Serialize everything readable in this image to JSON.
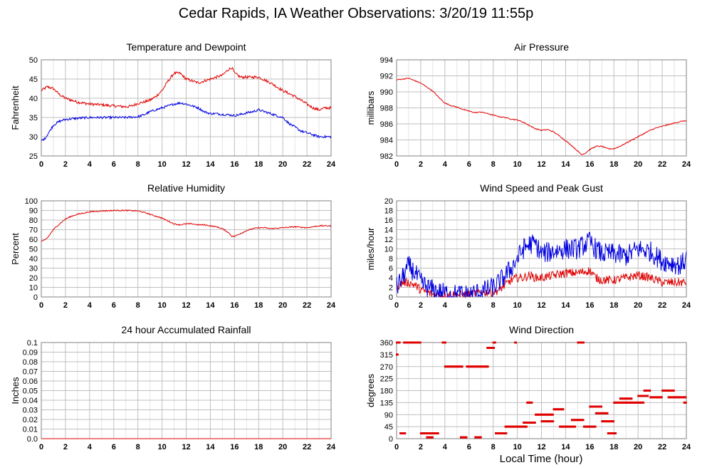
{
  "page": {
    "title": "Cedar Rapids, IA Weather Observations: 3/20/19 11:55p",
    "x_axis_title": "Local Time (hour)"
  },
  "colors": {
    "red": "#e00000",
    "blue": "#0000e0",
    "grid": "#bfbfbf",
    "frame": "#808080"
  },
  "chart_data": [
    {
      "id": "temp",
      "type": "line",
      "title": "Temperature and Dewpoint",
      "ylabel": "Fahrenheit",
      "xlim": [
        0,
        24
      ],
      "ylim": [
        25,
        50
      ],
      "yticks": [
        25,
        30,
        35,
        40,
        45,
        50
      ],
      "xticks": [
        0,
        2,
        4,
        6,
        8,
        10,
        12,
        14,
        16,
        18,
        20,
        22,
        24
      ],
      "grid": true,
      "series": [
        {
          "color": "red",
          "style": "line",
          "noise": 0.35,
          "x": [
            0,
            0.5,
            1,
            1.5,
            2,
            3,
            4,
            5,
            6,
            7,
            7.5,
            8,
            8.5,
            9,
            9.5,
            10,
            10.5,
            11,
            11.5,
            12,
            12.5,
            13,
            13.5,
            14,
            14.5,
            15,
            15.5,
            15.8,
            16,
            16.5,
            17,
            18,
            19,
            20,
            21,
            22,
            22.5,
            23,
            23.5,
            24
          ],
          "y": [
            42,
            43,
            42.5,
            41,
            40,
            39,
            38.5,
            38.3,
            38,
            37.8,
            38,
            38.7,
            39,
            39.5,
            40.5,
            42,
            44.5,
            46.5,
            46.5,
            45,
            44.5,
            44,
            44.5,
            45,
            45.5,
            46,
            47.5,
            48,
            46.5,
            45.5,
            45.5,
            45.5,
            44,
            42,
            40.5,
            38.5,
            37.5,
            37,
            37.5,
            37.5
          ]
        },
        {
          "color": "blue",
          "style": "line",
          "noise": 0.3,
          "x": [
            0,
            0.3,
            0.6,
            1,
            1.5,
            2,
            3,
            4,
            5,
            6,
            7,
            8,
            8.5,
            9,
            9.5,
            10,
            10.5,
            11,
            11.5,
            12,
            12.5,
            13,
            13.5,
            14,
            14.5,
            15,
            15.5,
            16,
            16.5,
            17,
            17.5,
            18,
            18.5,
            19,
            19.5,
            20,
            20.5,
            21,
            21.5,
            22,
            22.5,
            23,
            23.5,
            24
          ],
          "y": [
            29,
            29.5,
            31,
            33,
            34,
            34.5,
            34.8,
            35,
            35,
            35,
            35,
            35.2,
            35.7,
            36.5,
            37,
            37.5,
            38,
            38.5,
            38.8,
            38.5,
            38,
            37.5,
            36.5,
            36,
            36,
            35.8,
            35.7,
            35.5,
            35.8,
            36.2,
            36.5,
            37,
            36.5,
            36,
            35.5,
            35,
            33.5,
            32.5,
            31.5,
            31,
            30.5,
            30,
            30,
            30
          ]
        }
      ]
    },
    {
      "id": "pressure",
      "type": "line",
      "title": "Air Pressure",
      "ylabel": "millibars",
      "xlim": [
        0,
        24
      ],
      "ylim": [
        982,
        994
      ],
      "yticks": [
        982,
        984,
        986,
        988,
        990,
        992,
        994
      ],
      "xticks": [
        0,
        2,
        4,
        6,
        8,
        10,
        12,
        14,
        16,
        18,
        20,
        22,
        24
      ],
      "grid": true,
      "series": [
        {
          "color": "red",
          "style": "line",
          "noise": 0.06,
          "x": [
            0,
            0.5,
            1,
            1.5,
            2,
            2.5,
            3,
            3.5,
            4,
            4.5,
            5,
            5.5,
            6,
            6.5,
            7,
            7.5,
            8,
            8.5,
            9,
            9.5,
            10,
            10.5,
            11,
            11.5,
            12,
            12.5,
            13,
            13.5,
            14,
            14.5,
            15,
            15.3,
            15.6,
            16,
            16.5,
            17,
            17.5,
            18,
            18.5,
            19,
            19.5,
            20,
            20.5,
            21,
            21.5,
            22,
            22.5,
            23,
            23.5,
            24
          ],
          "y": [
            991.5,
            991.6,
            991.7,
            991.4,
            991.1,
            990.6,
            990.1,
            989.3,
            988.6,
            988.3,
            988.1,
            987.8,
            987.6,
            987.4,
            987.5,
            987.3,
            987.1,
            986.9,
            986.8,
            986.6,
            986.5,
            986.2,
            985.8,
            985.4,
            985.2,
            985.3,
            985,
            984.5,
            983.9,
            983.3,
            982.6,
            982.2,
            982.3,
            982.8,
            983.2,
            983.2,
            982.9,
            982.9,
            983.2,
            983.6,
            984,
            984.4,
            984.8,
            985.2,
            985.5,
            985.7,
            985.9,
            986.1,
            986.3,
            986.4
          ]
        }
      ]
    },
    {
      "id": "humidity",
      "type": "line",
      "title": "Relative Humidity",
      "ylabel": "Percent",
      "xlim": [
        0,
        24
      ],
      "ylim": [
        0,
        100
      ],
      "yticks": [
        0,
        10,
        20,
        30,
        40,
        50,
        60,
        70,
        80,
        90,
        100
      ],
      "xticks": [
        0,
        2,
        4,
        6,
        8,
        10,
        12,
        14,
        16,
        18,
        20,
        22,
        24
      ],
      "grid": true,
      "series": [
        {
          "color": "red",
          "style": "line",
          "noise": 0.6,
          "x": [
            0,
            0.3,
            0.6,
            1,
            1.5,
            2,
            2.5,
            3,
            4,
            5,
            6,
            7,
            8,
            8.5,
            9,
            9.5,
            10,
            10.5,
            11,
            11.5,
            12,
            12.5,
            13,
            13.5,
            14,
            14.5,
            15,
            15.5,
            15.8,
            16,
            16.5,
            17,
            17.5,
            18,
            18.5,
            19,
            20,
            21,
            22,
            22.5,
            23,
            23.5,
            24
          ],
          "y": [
            58,
            59,
            63,
            70,
            76,
            81,
            84,
            86,
            88.5,
            89.5,
            90,
            90,
            89.5,
            88,
            86,
            84,
            82,
            79,
            76,
            75,
            76,
            76,
            75,
            75,
            74,
            73,
            71,
            67,
            63,
            63,
            66,
            69,
            71,
            72,
            72,
            71,
            72,
            73,
            72,
            73,
            74,
            74,
            74
          ]
        }
      ]
    },
    {
      "id": "wind",
      "type": "line",
      "title": "Wind Speed and Peak Gust",
      "ylabel": "miles/hour",
      "xlim": [
        0,
        24
      ],
      "ylim": [
        0,
        20
      ],
      "yticks": [
        0,
        2,
        4,
        6,
        8,
        10,
        12,
        14,
        16,
        18,
        20
      ],
      "xticks": [
        0,
        2,
        4,
        6,
        8,
        10,
        12,
        14,
        16,
        18,
        20,
        22,
        24
      ],
      "grid": true,
      "series": [
        {
          "color": "red",
          "style": "line",
          "noise": 0.9,
          "floor": 0,
          "x": [
            0,
            0.5,
            1,
            1.5,
            2,
            2.5,
            3,
            4,
            5,
            6,
            7,
            8,
            8.5,
            9,
            9.5,
            10,
            10.5,
            11,
            11.5,
            12,
            13,
            14,
            15,
            16,
            16.5,
            17,
            18,
            19,
            20,
            21,
            22,
            23,
            24
          ],
          "y": [
            2,
            3,
            3,
            2.5,
            1.5,
            1,
            0.5,
            0.5,
            0.5,
            0.5,
            1,
            1,
            1.5,
            2.5,
            3.5,
            4,
            4,
            4.5,
            4,
            4,
            4.5,
            5,
            5,
            5.5,
            4,
            3.5,
            3.5,
            4,
            4.5,
            4,
            3,
            3,
            3
          ]
        },
        {
          "color": "blue",
          "style": "line",
          "noise": 2.2,
          "floor": 0,
          "x": [
            0,
            0.5,
            1,
            1.5,
            2,
            2.5,
            3,
            3.5,
            4,
            5,
            6,
            7,
            8,
            8.5,
            9,
            9.5,
            10,
            10.5,
            11,
            11.5,
            12,
            13,
            14,
            15,
            16,
            16.5,
            17,
            18,
            19,
            20,
            21,
            22,
            23,
            23.5,
            24
          ],
          "y": [
            2,
            4,
            6.5,
            5,
            3,
            2,
            1.5,
            1,
            0.8,
            0.5,
            0.5,
            1,
            2,
            3,
            4.5,
            6,
            8,
            10,
            11,
            11,
            9,
            9.5,
            10,
            10,
            11.5,
            10,
            9,
            9,
            8.5,
            10,
            9.5,
            7.5,
            7,
            6.5,
            8
          ]
        }
      ]
    },
    {
      "id": "rain",
      "type": "line",
      "title": "24 hour Accumulated Rainfall",
      "ylabel": "Inches",
      "xlim": [
        0,
        24
      ],
      "ylim": [
        0,
        0.1
      ],
      "yticks": [
        0,
        0.01,
        0.02,
        0.03,
        0.04,
        0.05,
        0.06,
        0.07,
        0.08,
        0.09,
        0.1
      ],
      "ytick_labels": [
        "0.0",
        "0.01",
        "0.02",
        "0.03",
        "0.04",
        "0.05",
        "0.06",
        "0.07",
        "0.08",
        "0.09",
        "0.1"
      ],
      "xticks": [
        0,
        2,
        4,
        6,
        8,
        10,
        12,
        14,
        16,
        18,
        20,
        22,
        24
      ],
      "grid": true,
      "series": [
        {
          "color": "red",
          "style": "line",
          "noise": 0,
          "x": [
            0,
            24
          ],
          "y": [
            0,
            0
          ]
        }
      ]
    },
    {
      "id": "direction",
      "type": "scatter",
      "title": "Wind Direction",
      "ylabel": "degrees",
      "xlim": [
        0,
        24
      ],
      "ylim": [
        0,
        360
      ],
      "yticks": [
        0,
        45,
        90,
        135,
        180,
        225,
        270,
        315,
        360
      ],
      "xticks": [
        0,
        2,
        4,
        6,
        8,
        10,
        12,
        14,
        16,
        18,
        20,
        22,
        24
      ],
      "grid": true,
      "series": [
        {
          "color": "red",
          "style": "dots",
          "segments": [
            [
              0,
              0.1,
              315,
              315
            ],
            [
              0,
              0.3,
              360,
              360
            ],
            [
              0.3,
              0.7,
              20,
              20
            ],
            [
              0.6,
              1.1,
              360,
              360
            ],
            [
              1,
              2,
              360,
              360
            ],
            [
              2,
              3.5,
              20,
              20
            ],
            [
              2.5,
              3,
              5,
              5
            ],
            [
              3.8,
              4.1,
              360,
              360
            ],
            [
              4,
              5.5,
              270,
              270
            ],
            [
              5.3,
              5.8,
              5,
              5
            ],
            [
              5.8,
              7.6,
              270,
              270
            ],
            [
              6.5,
              7,
              5,
              5
            ],
            [
              7.5,
              8.1,
              340,
              340
            ],
            [
              8,
              8.2,
              360,
              360
            ],
            [
              8.2,
              9.1,
              20,
              20
            ],
            [
              9,
              10.8,
              45,
              45
            ],
            [
              9.8,
              9.9,
              360,
              360
            ],
            [
              10.5,
              11.5,
              60,
              60
            ],
            [
              10.8,
              11.2,
              135,
              135
            ],
            [
              11.5,
              13,
              90,
              90
            ],
            [
              12,
              13,
              65,
              65
            ],
            [
              13,
              13.8,
              110,
              110
            ],
            [
              13.5,
              14.8,
              45,
              45
            ],
            [
              14.5,
              15.5,
              70,
              70
            ],
            [
              15,
              15.5,
              360,
              360
            ],
            [
              15.5,
              16.5,
              45,
              45
            ],
            [
              16,
              17,
              120,
              120
            ],
            [
              16.5,
              17.5,
              95,
              95
            ],
            [
              17,
              18,
              65,
              65
            ],
            [
              17.5,
              18.2,
              20,
              20
            ],
            [
              18,
              19,
              135,
              135
            ],
            [
              18.5,
              19.5,
              150,
              150
            ],
            [
              19,
              20.5,
              135,
              135
            ],
            [
              20,
              20.8,
              160,
              160
            ],
            [
              20.5,
              21,
              180,
              180
            ],
            [
              21,
              22,
              155,
              155
            ],
            [
              22,
              23,
              180,
              180
            ],
            [
              22.5,
              24,
              155,
              155
            ],
            [
              23.8,
              24,
              135,
              135
            ]
          ]
        }
      ]
    }
  ]
}
